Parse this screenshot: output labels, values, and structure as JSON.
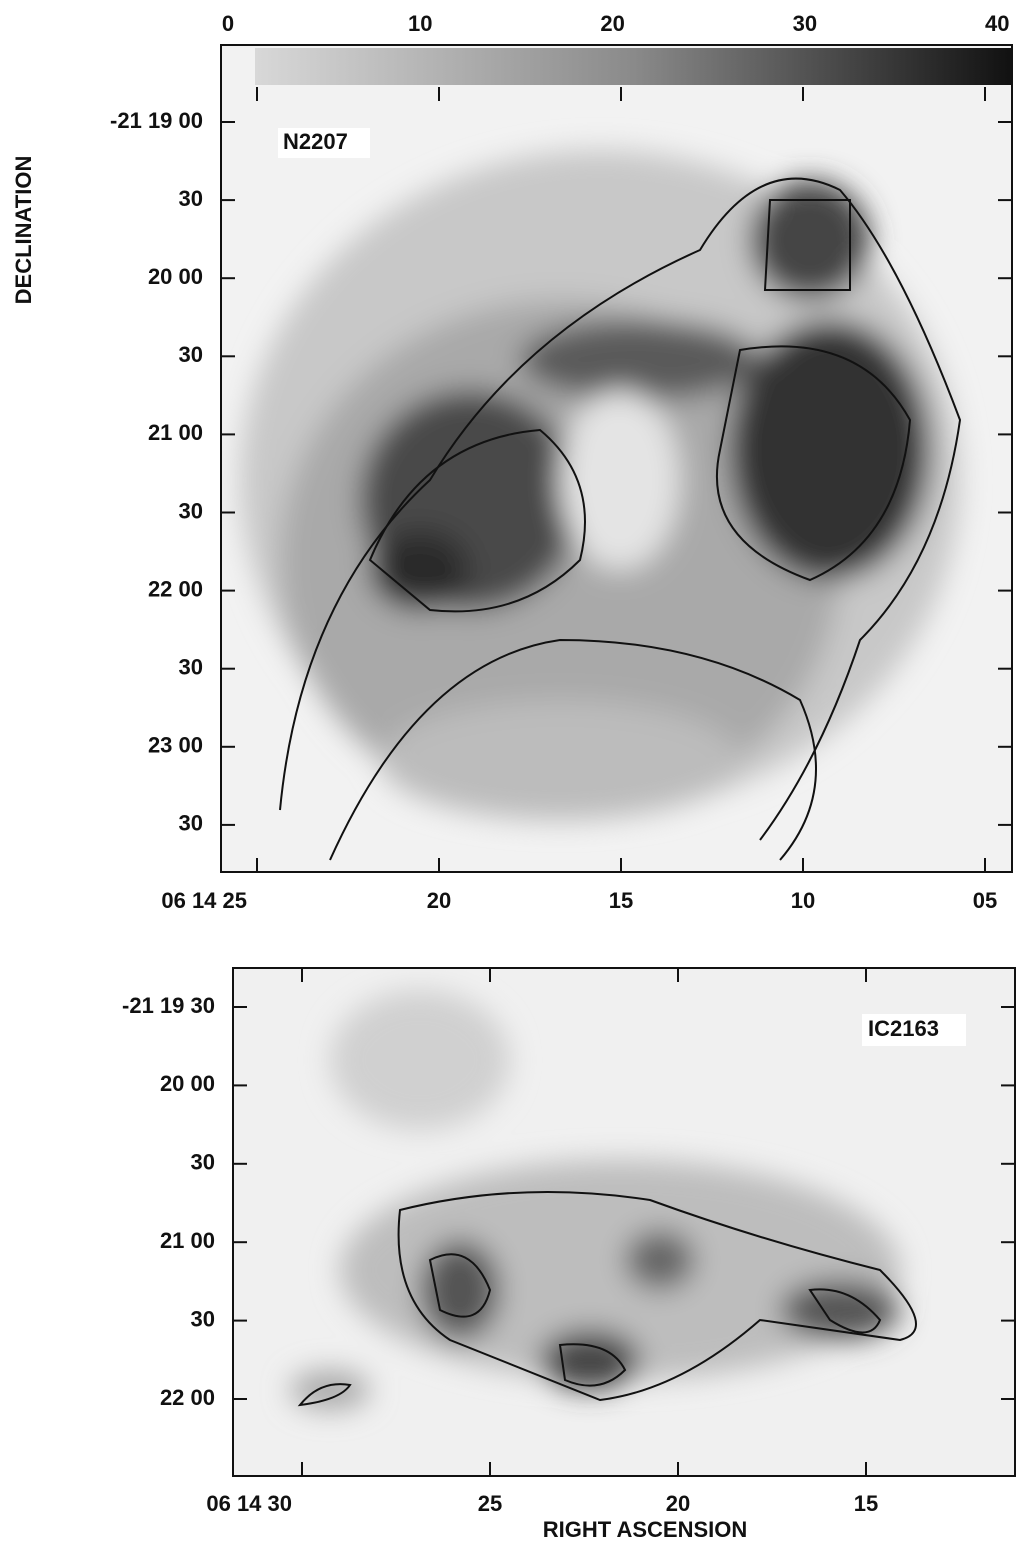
{
  "colorbar": {
    "ticks": [
      0,
      10,
      20,
      30,
      40
    ]
  },
  "y_axis_label": "DECLINATION",
  "x_axis_label": "RIGHT ASCENSION",
  "panels": [
    {
      "label": "N2207",
      "y_ticks": [
        "-21 19 00",
        "30",
        "20 00",
        "30",
        "21 00",
        "30",
        "22 00",
        "30",
        "23 00",
        "30"
      ],
      "x_ticks": [
        "06 14 25",
        "20",
        "15",
        "10",
        "05"
      ]
    },
    {
      "label": "IC2163",
      "y_ticks": [
        "-21 19 30",
        "20 00",
        "30",
        "21 00",
        "30",
        "22 00"
      ],
      "x_ticks": [
        "06 14 30",
        "25",
        "20",
        "15"
      ]
    }
  ]
}
